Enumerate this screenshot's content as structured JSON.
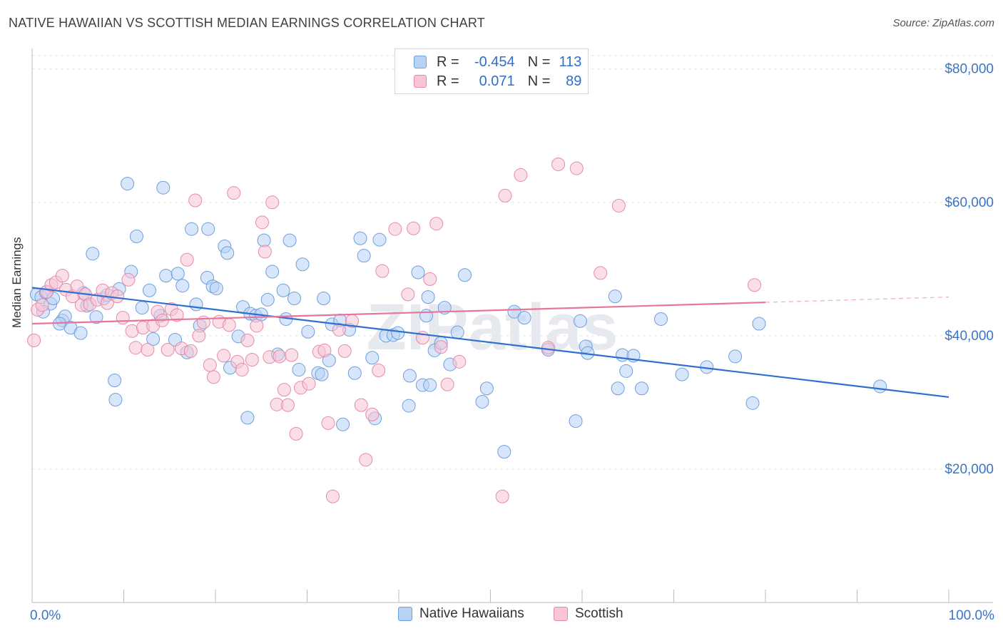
{
  "title": "NATIVE HAWAIIAN VS SCOTTISH MEDIAN EARNINGS CORRELATION CHART",
  "source": "Source: ZipAtlas.com",
  "legend": {
    "r_label": "R =",
    "n_label": "N =",
    "rows": [
      {
        "r": "-0.454",
        "n": "113",
        "color": "#b6d2f5",
        "border": "#6f9fdc"
      },
      {
        "r": "0.071",
        "n": "89",
        "color": "#f8c4d6",
        "border": "#e68aa9"
      }
    ]
  },
  "bottom_legend": [
    {
      "label": "Native Hawaiians",
      "color": "#b6d2f5",
      "border": "#6f9fdc"
    },
    {
      "label": "Scottish",
      "color": "#f8c4d6",
      "border": "#e68aa9"
    }
  ],
  "watermark": "ZIPatlas",
  "chart_data": {
    "type": "scatter",
    "title": "NATIVE HAWAIIAN VS SCOTTISH MEDIAN EARNINGS CORRELATION CHART",
    "xlabel": "",
    "ylabel": "Median Earnings",
    "xlim": [
      0,
      100
    ],
    "ylim": [
      0,
      82000
    ],
    "x_tick_labels": [
      "0.0%",
      "100.0%"
    ],
    "y_ticks": [
      {
        "value": 20000,
        "label": "$20,000"
      },
      {
        "value": 40000,
        "label": "$40,000"
      },
      {
        "value": 60000,
        "label": "$60,000"
      },
      {
        "value": 80000,
        "label": "$80,000"
      }
    ],
    "grid": true,
    "legend_position": "top-center",
    "series": [
      {
        "name": "Native Hawaiians",
        "color": "#6f9fdc",
        "fill": "#b6d2f5",
        "line_color": "#2f6fd0",
        "trend": {
          "x1": 0,
          "y1": 47200,
          "x2": 100,
          "y2": 30800
        },
        "points": [
          [
            0.5,
            46200
          ],
          [
            1.0,
            45800
          ],
          [
            1.5,
            46500
          ],
          [
            2.0,
            44800
          ],
          [
            2.3,
            45600
          ],
          [
            3.3,
            42300
          ],
          [
            3.6,
            42900
          ],
          [
            4.2,
            41200
          ],
          [
            5.3,
            40400
          ],
          [
            5.6,
            46400
          ],
          [
            6.0,
            44500
          ],
          [
            6.6,
            52300
          ],
          [
            7.0,
            42800
          ],
          [
            7.8,
            45600
          ],
          [
            8.2,
            46100
          ],
          [
            9.0,
            33300
          ],
          [
            9.1,
            30400
          ],
          [
            9.5,
            47000
          ],
          [
            10.4,
            62800
          ],
          [
            10.8,
            49600
          ],
          [
            11.4,
            54900
          ],
          [
            12.0,
            44200
          ],
          [
            12.8,
            46800
          ],
          [
            13.2,
            39500
          ],
          [
            14.0,
            43000
          ],
          [
            14.3,
            62200
          ],
          [
            14.6,
            49000
          ],
          [
            15.6,
            39400
          ],
          [
            15.9,
            49300
          ],
          [
            16.4,
            47500
          ],
          [
            16.9,
            37500
          ],
          [
            17.4,
            56000
          ],
          [
            17.9,
            44700
          ],
          [
            18.3,
            41500
          ],
          [
            19.1,
            48700
          ],
          [
            19.2,
            56000
          ],
          [
            19.7,
            47400
          ],
          [
            20.1,
            47100
          ],
          [
            21.0,
            53400
          ],
          [
            21.3,
            52400
          ],
          [
            21.6,
            35200
          ],
          [
            22.5,
            39900
          ],
          [
            23.0,
            44300
          ],
          [
            23.5,
            27700
          ],
          [
            23.8,
            43300
          ],
          [
            24.4,
            43000
          ],
          [
            25.0,
            43200
          ],
          [
            25.3,
            54300
          ],
          [
            25.7,
            45400
          ],
          [
            26.2,
            49600
          ],
          [
            26.8,
            37200
          ],
          [
            27.4,
            46800
          ],
          [
            27.7,
            42500
          ],
          [
            28.1,
            54300
          ],
          [
            28.6,
            45600
          ],
          [
            29.1,
            34900
          ],
          [
            29.5,
            50700
          ],
          [
            30.1,
            40600
          ],
          [
            31.2,
            34400
          ],
          [
            31.6,
            34200
          ],
          [
            31.8,
            45600
          ],
          [
            32.4,
            36300
          ],
          [
            32.7,
            41700
          ],
          [
            33.6,
            42300
          ],
          [
            33.9,
            26700
          ],
          [
            34.6,
            40900
          ],
          [
            35.2,
            34400
          ],
          [
            35.8,
            54600
          ],
          [
            36.2,
            52000
          ],
          [
            37.1,
            36700
          ],
          [
            37.4,
            27600
          ],
          [
            37.9,
            54400
          ],
          [
            38.6,
            40000
          ],
          [
            39.4,
            40100
          ],
          [
            39.9,
            40400
          ],
          [
            41.1,
            29500
          ],
          [
            41.2,
            34000
          ],
          [
            42.1,
            49500
          ],
          [
            42.6,
            32600
          ],
          [
            43.0,
            43000
          ],
          [
            43.2,
            45800
          ],
          [
            43.4,
            32600
          ],
          [
            43.9,
            37800
          ],
          [
            44.6,
            38900
          ],
          [
            45.0,
            44200
          ],
          [
            45.6,
            35700
          ],
          [
            46.4,
            40500
          ],
          [
            47.2,
            49100
          ],
          [
            49.1,
            30100
          ],
          [
            49.6,
            32100
          ],
          [
            51.5,
            22600
          ],
          [
            52.6,
            43600
          ],
          [
            53.7,
            42700
          ],
          [
            56.3,
            37900
          ],
          [
            59.3,
            27200
          ],
          [
            59.8,
            42200
          ],
          [
            60.4,
            38400
          ],
          [
            60.6,
            37400
          ],
          [
            63.6,
            45900
          ],
          [
            63.9,
            32100
          ],
          [
            64.4,
            37100
          ],
          [
            64.8,
            34700
          ],
          [
            65.6,
            37000
          ],
          [
            66.5,
            32100
          ],
          [
            68.6,
            42500
          ],
          [
            70.9,
            34200
          ],
          [
            73.6,
            35300
          ],
          [
            76.7,
            36900
          ],
          [
            78.6,
            29900
          ],
          [
            79.3,
            41800
          ],
          [
            92.5,
            32400
          ],
          [
            1.2,
            43600
          ],
          [
            3.0,
            41800
          ]
        ]
      },
      {
        "name": "Scottish",
        "color": "#e68aa9",
        "fill": "#f8c4d6",
        "line_color": "#e8759a",
        "trend": {
          "x1": 0,
          "y1": 41800,
          "x2": 80,
          "y2": 45000,
          "x_dash_end": 100,
          "y_dash_end": 45800
        },
        "points": [
          [
            0.2,
            39300
          ],
          [
            0.6,
            43900
          ],
          [
            1.1,
            44600
          ],
          [
            1.6,
            46600
          ],
          [
            2.1,
            47600
          ],
          [
            2.6,
            48000
          ],
          [
            3.3,
            49000
          ],
          [
            3.7,
            46900
          ],
          [
            4.4,
            45900
          ],
          [
            4.9,
            47400
          ],
          [
            5.4,
            44600
          ],
          [
            5.8,
            46200
          ],
          [
            6.3,
            44700
          ],
          [
            7.1,
            45400
          ],
          [
            7.7,
            46800
          ],
          [
            8.2,
            44900
          ],
          [
            8.7,
            46400
          ],
          [
            9.3,
            45900
          ],
          [
            9.9,
            42700
          ],
          [
            10.5,
            48400
          ],
          [
            10.9,
            40700
          ],
          [
            11.3,
            38200
          ],
          [
            12.1,
            41200
          ],
          [
            12.6,
            37900
          ],
          [
            13.2,
            41500
          ],
          [
            13.7,
            43600
          ],
          [
            14.2,
            42300
          ],
          [
            14.8,
            37900
          ],
          [
            15.2,
            44000
          ],
          [
            15.8,
            43100
          ],
          [
            16.3,
            38100
          ],
          [
            16.9,
            51400
          ],
          [
            17.3,
            37700
          ],
          [
            17.8,
            60300
          ],
          [
            18.2,
            40000
          ],
          [
            18.7,
            42000
          ],
          [
            19.4,
            35600
          ],
          [
            19.8,
            33800
          ],
          [
            20.4,
            42100
          ],
          [
            20.9,
            37000
          ],
          [
            21.5,
            41600
          ],
          [
            22.0,
            61400
          ],
          [
            22.4,
            36100
          ],
          [
            22.9,
            34900
          ],
          [
            23.5,
            39300
          ],
          [
            24.0,
            36400
          ],
          [
            24.5,
            41500
          ],
          [
            25.1,
            57000
          ],
          [
            25.4,
            52600
          ],
          [
            25.9,
            36800
          ],
          [
            26.2,
            60000
          ],
          [
            26.7,
            29700
          ],
          [
            27.0,
            36900
          ],
          [
            27.5,
            31900
          ],
          [
            27.9,
            29600
          ],
          [
            28.3,
            37100
          ],
          [
            28.8,
            25300
          ],
          [
            29.3,
            32200
          ],
          [
            30.2,
            32800
          ],
          [
            31.3,
            37600
          ],
          [
            31.9,
            37800
          ],
          [
            32.3,
            26900
          ],
          [
            32.8,
            15900
          ],
          [
            33.5,
            40900
          ],
          [
            34.1,
            37700
          ],
          [
            34.9,
            42200
          ],
          [
            35.9,
            29600
          ],
          [
            36.4,
            21400
          ],
          [
            37.1,
            28200
          ],
          [
            37.8,
            34800
          ],
          [
            38.2,
            49700
          ],
          [
            39.6,
            56000
          ],
          [
            41.0,
            46200
          ],
          [
            41.6,
            56100
          ],
          [
            42.6,
            39700
          ],
          [
            43.4,
            48500
          ],
          [
            44.1,
            56800
          ],
          [
            44.6,
            38300
          ],
          [
            45.3,
            32700
          ],
          [
            46.6,
            36100
          ],
          [
            51.3,
            15900
          ],
          [
            51.6,
            61000
          ],
          [
            53.3,
            64100
          ],
          [
            56.3,
            38200
          ],
          [
            57.4,
            65700
          ],
          [
            59.4,
            65100
          ],
          [
            62.0,
            49400
          ],
          [
            64.0,
            59500
          ],
          [
            78.8,
            47600
          ]
        ]
      }
    ]
  }
}
